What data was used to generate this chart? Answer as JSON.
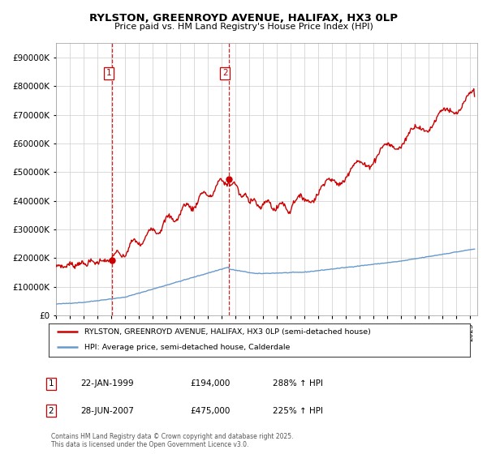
{
  "title": "RYLSTON, GREENROYD AVENUE, HALIFAX, HX3 0LP",
  "subtitle": "Price paid vs. HM Land Registry's House Price Index (HPI)",
  "legend_line1": "RYLSTON, GREENROYD AVENUE, HALIFAX, HX3 0LP (semi-detached house)",
  "legend_line2": "HPI: Average price, semi-detached house, Calderdale",
  "annotation1_label": "1",
  "annotation1_date": "22-JAN-1999",
  "annotation1_price": "£194,000",
  "annotation1_hpi": "288% ↑ HPI",
  "annotation2_label": "2",
  "annotation2_date": "28-JUN-2007",
  "annotation2_price": "£475,000",
  "annotation2_hpi": "225% ↑ HPI",
  "footnote": "Contains HM Land Registry data © Crown copyright and database right 2025.\nThis data is licensed under the Open Government Licence v3.0.",
  "sale1_year": 1999.06,
  "sale1_price": 194000,
  "sale2_year": 2007.49,
  "sale2_price": 475000,
  "red_color": "#cc0000",
  "blue_color": "#6699cc",
  "dashed_color": "#cc0000",
  "background_color": "#ffffff",
  "grid_color": "#cccccc",
  "ylim": [
    0,
    950000
  ],
  "xlim_start": 1995.0,
  "xlim_end": 2025.5
}
